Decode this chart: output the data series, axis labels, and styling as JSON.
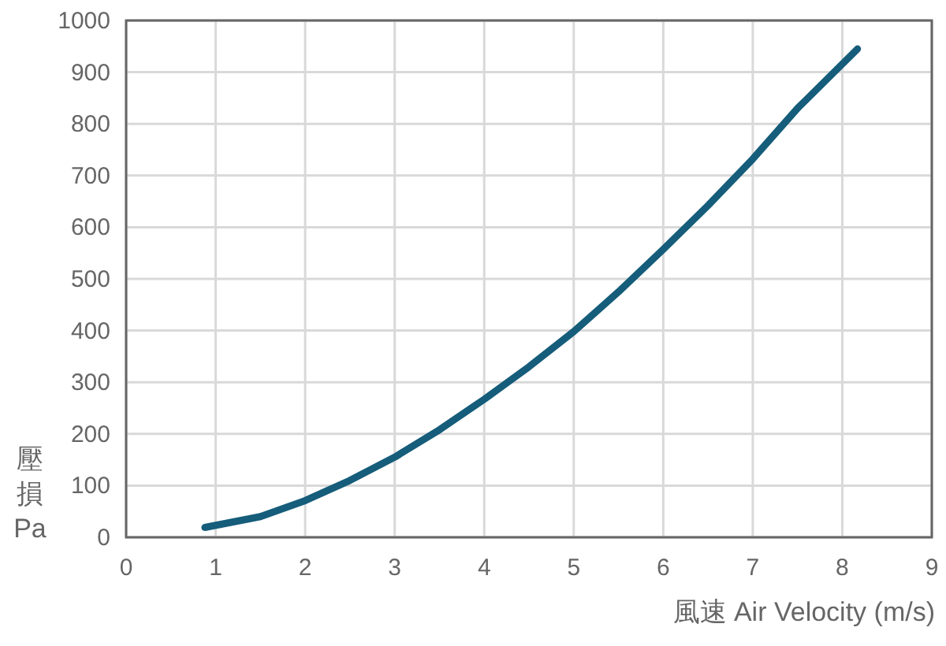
{
  "chart_data": {
    "type": "line",
    "xlabel": "風速  Air Velocity (m/s)",
    "ylabel": "壓損 Pa",
    "x": [
      0.88,
      1.5,
      2,
      2.5,
      3,
      3.5,
      4,
      4.5,
      5,
      5.5,
      6,
      6.5,
      7,
      7.5,
      8.17
    ],
    "series": [
      {
        "color": "#155d7a",
        "values": [
          19,
          40,
          71,
          110,
          155,
          208,
          267,
          330,
          398,
          475,
          557,
          642,
          732,
          830,
          945
        ]
      }
    ],
    "xlim": [
      0,
      9
    ],
    "xticks": [
      0,
      1,
      2,
      3,
      4,
      5,
      6,
      7,
      8,
      9
    ],
    "ylim": [
      0,
      1000
    ],
    "yticks": [
      0,
      100,
      200,
      300,
      400,
      500,
      600,
      700,
      800,
      900,
      1000
    ],
    "grid": true,
    "marker": "none",
    "line_style": "solid"
  }
}
